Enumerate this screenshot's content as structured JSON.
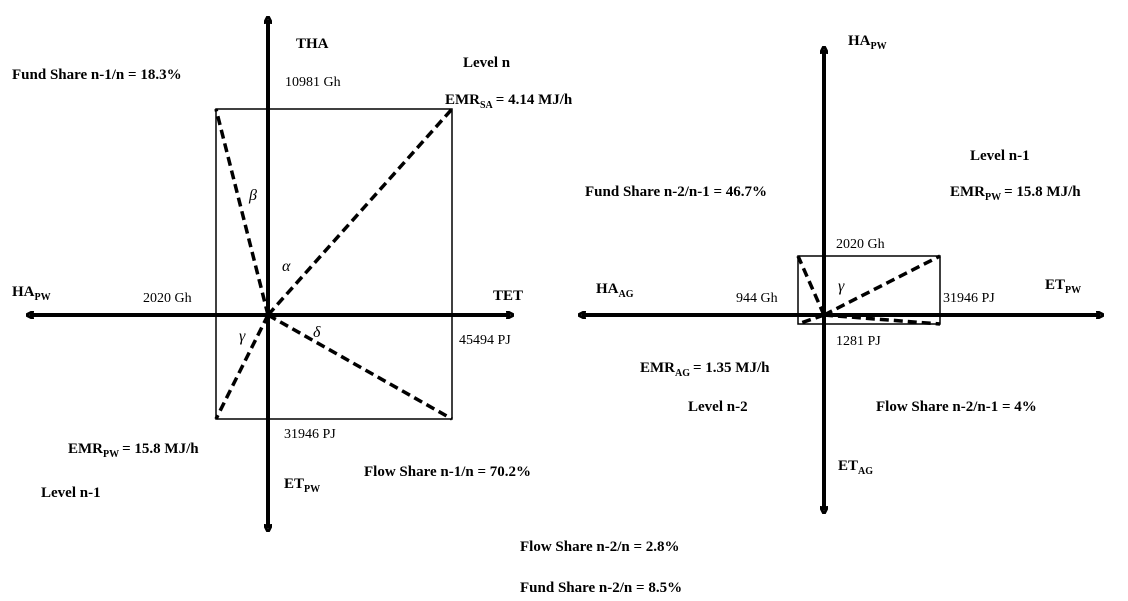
{
  "left": {
    "axes": {
      "top": "THA",
      "right": "TET",
      "left": "HA",
      "left_sub": "PW",
      "bottom": "ET",
      "bottom_sub": "PW"
    },
    "level_top": "Level n",
    "level_bottom": "Level n-1",
    "fund_share": "Fund Share n-1/n  = 18.3%",
    "flow_share": "Flow Share n-1/n = 70.2%",
    "emr_sa_prefix": "EMR",
    "emr_sa_sub": "SA",
    "emr_sa_value": "= 4.14 MJ/h",
    "emr_pw_prefix": "EMR",
    "emr_pw_sub": "PW",
    "emr_pw_value": "= 15.8 MJ/h",
    "val_top": "10981 Gh",
    "val_left": "2020 Gh",
    "val_right": "45494 PJ",
    "val_bottom": "31946 PJ",
    "angles": {
      "alpha": "α",
      "beta": "β",
      "gamma": "γ",
      "delta": "δ"
    }
  },
  "right": {
    "axes": {
      "top": "HA",
      "top_sub": "PW",
      "right": "ET",
      "right_sub": "PW",
      "left": "HA",
      "left_sub": "AG",
      "bottom": "ET",
      "bottom_sub": "AG"
    },
    "level_top": "Level n-1",
    "level_bottom": "Level n-2",
    "fund_share": "Fund Share n-2/n-1 = 46.7%",
    "flow_share": "Flow Share n-2/n-1  =  4%",
    "emr_pw_prefix": "EMR",
    "emr_pw_sub": "PW",
    "emr_pw_value": "= 15.8 MJ/h",
    "emr_ag_prefix": "EMR",
    "emr_ag_sub": "AG",
    "emr_ag_value": "= 1.35 MJ/h",
    "val_top": "2020 Gh",
    "val_left": "944 Gh",
    "val_right": "31946 PJ",
    "val_bottom": "1281 PJ",
    "angles": {
      "gamma": "γ"
    }
  },
  "bottom": {
    "flow_share": "Flow Share n-2/n = 2.8%",
    "fund_share": "Fund Share n-2/n = 8.5%"
  }
}
